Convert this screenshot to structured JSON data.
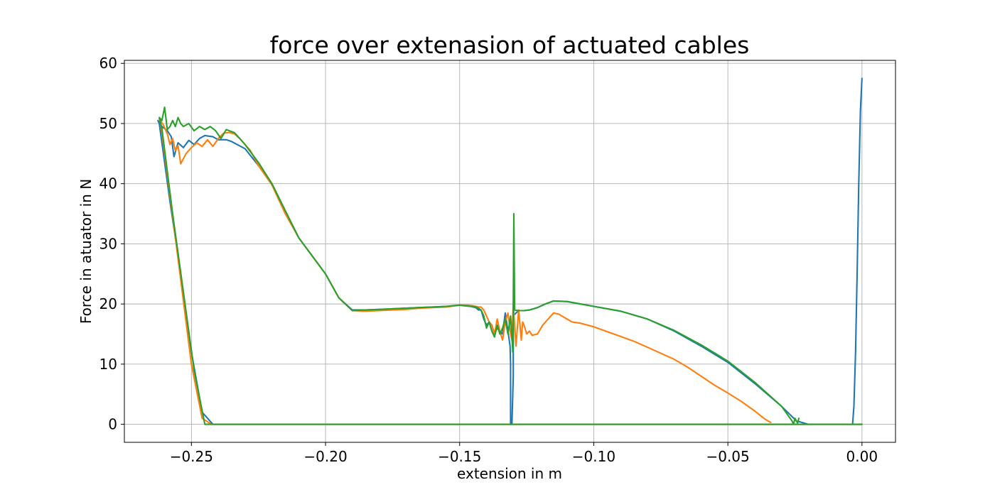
{
  "chart_data": {
    "type": "line",
    "title": "force over extenasion of actuated cables",
    "xlabel": "extension in m",
    "ylabel": "Force in atuator in N",
    "xlim": [
      -0.275,
      0.0125
    ],
    "ylim": [
      -3,
      60.5
    ],
    "xticks": [
      -0.25,
      -0.2,
      -0.15,
      -0.1,
      -0.05,
      0.0
    ],
    "xtick_labels": [
      "−0.25",
      "−0.20",
      "−0.15",
      "−0.10",
      "−0.05",
      "0.00"
    ],
    "yticks": [
      0,
      10,
      20,
      30,
      40,
      50,
      60
    ],
    "ytick_labels": [
      "0",
      "10",
      "20",
      "30",
      "40",
      "50",
      "60"
    ],
    "grid": true,
    "legend": null,
    "series": [
      {
        "color": "#1f77b4",
        "x": [
          0.0,
          -0.0006,
          -0.0012,
          -0.0018,
          -0.0024,
          -0.003,
          -0.0035,
          -0.0035,
          -0.01,
          -0.02,
          -0.024,
          -0.024,
          -0.025,
          -0.03,
          -0.04,
          -0.05,
          -0.06,
          -0.07,
          -0.08,
          -0.09,
          -0.1,
          -0.11,
          -0.115,
          -0.118,
          -0.121,
          -0.124,
          -0.126,
          -0.128,
          -0.129,
          -0.13,
          -0.13,
          -0.1305,
          -0.131,
          -0.131,
          -0.1312,
          -0.132,
          -0.133,
          -0.134,
          -0.135,
          -0.136,
          -0.137,
          -0.138,
          -0.139,
          -0.14,
          -0.141,
          -0.142,
          -0.143,
          -0.144,
          -0.145,
          -0.146,
          -0.148,
          -0.15,
          -0.155,
          -0.16,
          -0.165,
          -0.17,
          -0.175,
          -0.18,
          -0.185,
          -0.19,
          -0.195,
          -0.2,
          -0.205,
          -0.21,
          -0.215,
          -0.22,
          -0.225,
          -0.23,
          -0.235,
          -0.237,
          -0.24,
          -0.242,
          -0.245,
          -0.247,
          -0.249,
          -0.251,
          -0.253,
          -0.255,
          -0.2565,
          -0.2575,
          -0.259,
          -0.261,
          -0.2625,
          -0.262,
          -0.258,
          -0.254,
          -0.25,
          -0.246,
          -0.242,
          -0.24,
          -0.2,
          -0.15,
          -0.1,
          -0.05,
          0.0
        ],
        "y": [
          57.5,
          52.0,
          40.0,
          25.0,
          12.0,
          3.0,
          0.0,
          0.0,
          0.0,
          0.0,
          0.5,
          0.3,
          0.8,
          3.0,
          6.8,
          10.3,
          13.0,
          15.5,
          17.5,
          18.8,
          19.6,
          20.4,
          20.5,
          20.0,
          19.4,
          19.0,
          18.9,
          18.9,
          18.5,
          18.0,
          8.0,
          0.0,
          0.0,
          10.0,
          13.0,
          15.5,
          18.5,
          15.0,
          15.5,
          16.0,
          15.0,
          16.5,
          17.0,
          16.5,
          17.5,
          19.0,
          19.0,
          19.4,
          19.5,
          19.6,
          19.7,
          19.8,
          19.6,
          19.5,
          19.4,
          19.3,
          19.2,
          19.1,
          19.0,
          19.0,
          21.0,
          25.0,
          28.0,
          31.0,
          35.5,
          40.0,
          43.0,
          45.8,
          47.0,
          47.3,
          47.3,
          47.8,
          48.0,
          47.5,
          46.5,
          47.2,
          46.0,
          46.8,
          44.5,
          47.8,
          48.8,
          49.5,
          50.5,
          50.0,
          37.0,
          25.0,
          12.0,
          2.0,
          0.0,
          0.0,
          0.0,
          0.0,
          0.0,
          0.0,
          0.0
        ]
      },
      {
        "color": "#ff7f0e",
        "x": [
          -0.034,
          -0.036,
          -0.04,
          -0.045,
          -0.05,
          -0.055,
          -0.06,
          -0.065,
          -0.07,
          -0.075,
          -0.08,
          -0.085,
          -0.09,
          -0.095,
          -0.1,
          -0.105,
          -0.108,
          -0.11,
          -0.113,
          -0.115,
          -0.117,
          -0.119,
          -0.121,
          -0.123,
          -0.124,
          -0.125,
          -0.126,
          -0.1265,
          -0.127,
          -0.128,
          -0.129,
          -0.13,
          -0.1305,
          -0.131,
          -0.132,
          -0.133,
          -0.134,
          -0.135,
          -0.136,
          -0.137,
          -0.138,
          -0.139,
          -0.14,
          -0.141,
          -0.142,
          -0.143,
          -0.144,
          -0.145,
          -0.147,
          -0.15,
          -0.155,
          -0.16,
          -0.165,
          -0.17,
          -0.175,
          -0.18,
          -0.185,
          -0.19,
          -0.195,
          -0.2,
          -0.205,
          -0.21,
          -0.215,
          -0.22,
          -0.225,
          -0.228,
          -0.23,
          -0.232,
          -0.234,
          -0.236,
          -0.238,
          -0.24,
          -0.242,
          -0.244,
          -0.246,
          -0.248,
          -0.25,
          -0.252,
          -0.254,
          -0.255,
          -0.256,
          -0.257,
          -0.258,
          -0.259,
          -0.2605,
          -0.262,
          -0.2615,
          -0.258,
          -0.254,
          -0.25,
          -0.246,
          -0.2425,
          -0.242,
          -0.2,
          -0.15,
          -0.1,
          -0.05,
          0.0
        ],
        "y": [
          0.3,
          0.8,
          2.2,
          3.8,
          5.2,
          6.5,
          8.0,
          9.5,
          10.8,
          11.8,
          12.8,
          13.8,
          14.6,
          15.4,
          16.2,
          16.8,
          17.0,
          17.5,
          18.3,
          18.5,
          17.5,
          16.5,
          15.0,
          14.8,
          15.5,
          15.0,
          16.5,
          17.0,
          14.0,
          19.0,
          13.0,
          20.0,
          14.0,
          15.0,
          18.5,
          17.0,
          14.0,
          15.5,
          17.5,
          15.0,
          16.5,
          17.0,
          18.0,
          19.0,
          19.5,
          19.5,
          19.6,
          19.7,
          19.8,
          19.8,
          19.5,
          19.4,
          19.3,
          19.1,
          19.0,
          18.9,
          18.8,
          18.9,
          21.0,
          25.0,
          28.0,
          31.0,
          35.0,
          39.8,
          43.0,
          45.5,
          46.5,
          47.5,
          48.3,
          48.5,
          48.4,
          47.5,
          46.2,
          47.3,
          46.2,
          46.8,
          46.0,
          45.0,
          43.3,
          46.3,
          45.5,
          47.5,
          46.5,
          48.3,
          49.8,
          50.8,
          50.2,
          38.0,
          24.0,
          10.0,
          1.0,
          0.0,
          0.0,
          0.0,
          0.0,
          0.0,
          0.0,
          0.0
        ]
      },
      {
        "color": "#2ca02c",
        "x": [
          -0.0235,
          -0.024,
          -0.025,
          -0.0255,
          -0.026,
          -0.03,
          -0.04,
          -0.05,
          -0.06,
          -0.07,
          -0.08,
          -0.09,
          -0.1,
          -0.11,
          -0.115,
          -0.118,
          -0.121,
          -0.124,
          -0.126,
          -0.128,
          -0.1295,
          -0.1298,
          -0.13,
          -0.1302,
          -0.1305,
          -0.131,
          -0.132,
          -0.133,
          -0.134,
          -0.135,
          -0.136,
          -0.137,
          -0.138,
          -0.139,
          -0.14,
          -0.141,
          -0.142,
          -0.143,
          -0.144,
          -0.145,
          -0.146,
          -0.148,
          -0.15,
          -0.155,
          -0.16,
          -0.165,
          -0.17,
          -0.175,
          -0.18,
          -0.185,
          -0.19,
          -0.195,
          -0.2,
          -0.205,
          -0.21,
          -0.215,
          -0.22,
          -0.225,
          -0.23,
          -0.232,
          -0.234,
          -0.236,
          -0.237,
          -0.239,
          -0.241,
          -0.243,
          -0.245,
          -0.247,
          -0.249,
          -0.251,
          -0.253,
          -0.254,
          -0.255,
          -0.256,
          -0.257,
          -0.258,
          -0.259,
          -0.26,
          -0.261,
          -0.262,
          -0.261,
          -0.257,
          -0.253,
          -0.249,
          -0.245,
          -0.241,
          -0.24,
          -0.2,
          -0.15,
          -0.1,
          -0.05,
          -0.025,
          0.0
        ],
        "y": [
          1.0,
          0.2,
          1.0,
          0.0,
          0.5,
          3.0,
          7.0,
          10.5,
          13.2,
          15.6,
          17.5,
          18.8,
          19.6,
          20.4,
          20.5,
          20.0,
          19.4,
          19.0,
          18.9,
          18.9,
          19.0,
          35.0,
          20.0,
          12.0,
          14.5,
          18.0,
          15.0,
          17.5,
          16.0,
          15.0,
          16.5,
          14.5,
          15.5,
          17.0,
          16.0,
          18.0,
          19.0,
          19.3,
          19.5,
          19.6,
          19.6,
          19.7,
          19.8,
          19.6,
          19.5,
          19.4,
          19.3,
          19.2,
          19.1,
          19.0,
          18.9,
          21.0,
          25.0,
          28.0,
          31.0,
          35.5,
          40.0,
          43.5,
          46.5,
          47.5,
          48.5,
          48.8,
          49.0,
          47.5,
          48.8,
          49.5,
          49.0,
          49.5,
          48.8,
          50.0,
          49.5,
          50.0,
          51.0,
          49.5,
          50.5,
          49.5,
          49.0,
          52.7,
          50.5,
          51.0,
          49.2,
          35.0,
          22.0,
          9.0,
          0.0,
          0.0,
          0.0,
          0.0,
          0.0,
          0.0,
          0.0,
          0.0,
          0.0
        ]
      }
    ]
  }
}
